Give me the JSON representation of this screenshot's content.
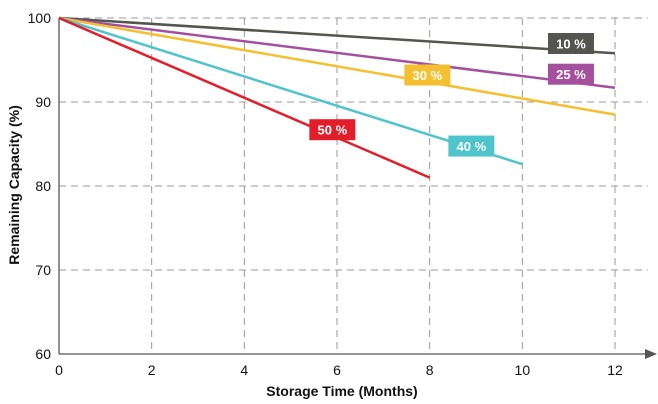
{
  "chart_data": {
    "type": "line",
    "xlabel": "Storage Time (Months)",
    "ylabel": "Remaining Capacity (%)",
    "xlim": [
      0,
      12
    ],
    "ylim": [
      60,
      100
    ],
    "x_ticks": [
      0,
      2,
      4,
      6,
      8,
      10,
      12
    ],
    "y_ticks": [
      60,
      70,
      80,
      90,
      100
    ],
    "grid": true,
    "series": [
      {
        "name": "10 %",
        "color": "#55554f",
        "x": [
          0,
          12
        ],
        "y": [
          100,
          95.8
        ]
      },
      {
        "name": "25 %",
        "color": "#a4509d",
        "x": [
          0,
          12
        ],
        "y": [
          100,
          91.7
        ]
      },
      {
        "name": "30 %",
        "color": "#f5bf32",
        "x": [
          0,
          12
        ],
        "y": [
          100,
          88.5
        ]
      },
      {
        "name": "40 %",
        "color": "#4fc4cc",
        "x": [
          0,
          10
        ],
        "y": [
          100,
          82.6
        ]
      },
      {
        "name": "50 %",
        "color": "#e31e2a",
        "x": [
          0,
          8
        ],
        "y": [
          100,
          81.0
        ]
      }
    ]
  }
}
